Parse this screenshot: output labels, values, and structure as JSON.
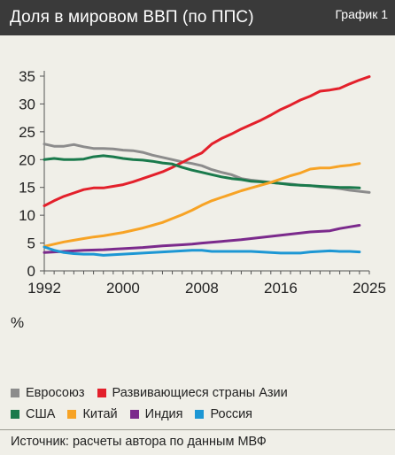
{
  "header": {
    "title": "Доля в мировом ВВП (по ППС)",
    "chart_label": "График 1"
  },
  "source": "Источник: расчеты автора по данным МВФ",
  "colors": {
    "header_bg": "#3a3a3a",
    "background": "#f0efe8"
  },
  "chart_data": {
    "type": "line",
    "title": "Доля в мировом ВВП (по ППС)",
    "xlabel": "",
    "ylabel": "%",
    "xlim": [
      1992,
      2025
    ],
    "ylim": [
      0,
      35
    ],
    "x_ticks": [
      1992,
      2000,
      2008,
      2016,
      2025
    ],
    "y_ticks": [
      0,
      5,
      10,
      15,
      20,
      25,
      30,
      35
    ],
    "grid": false,
    "legend_position": "bottom",
    "legend_rows": [
      [
        "Евросоюз",
        "Развивающиеся страны Азии"
      ],
      [
        "США",
        "Китай",
        "Индия",
        "Россия"
      ]
    ],
    "series": [
      {
        "name": "Евросоюз",
        "color": "#8c8c8c",
        "x": [
          1992,
          1993,
          1994,
          1995,
          1996,
          1997,
          1998,
          1999,
          2000,
          2001,
          2002,
          2003,
          2004,
          2005,
          2006,
          2007,
          2008,
          2009,
          2010,
          2011,
          2012,
          2013,
          2014,
          2015,
          2016,
          2017,
          2018,
          2019,
          2020,
          2021,
          2022,
          2023,
          2024,
          2025
        ],
        "y": [
          22.8,
          22.4,
          22.4,
          22.7,
          22.3,
          22.0,
          22.0,
          21.9,
          21.7,
          21.6,
          21.3,
          20.8,
          20.4,
          20.0,
          19.6,
          19.3,
          18.9,
          18.2,
          17.7,
          17.3,
          16.6,
          16.3,
          16.1,
          15.9,
          15.7,
          15.6,
          15.4,
          15.3,
          15.1,
          15.0,
          14.8,
          14.5,
          14.3,
          14.1
        ]
      },
      {
        "name": "Развивающиеся страны Азии",
        "color": "#e3202b",
        "x": [
          1992,
          1993,
          1994,
          1995,
          1996,
          1997,
          1998,
          1999,
          2000,
          2001,
          2002,
          2003,
          2004,
          2005,
          2006,
          2007,
          2008,
          2009,
          2010,
          2011,
          2012,
          2013,
          2014,
          2015,
          2016,
          2017,
          2018,
          2019,
          2020,
          2021,
          2022,
          2023,
          2024,
          2025
        ],
        "y": [
          11.7,
          12.6,
          13.4,
          14.0,
          14.6,
          14.9,
          14.9,
          15.2,
          15.5,
          16.0,
          16.6,
          17.2,
          17.8,
          18.6,
          19.5,
          20.4,
          21.2,
          22.8,
          23.8,
          24.6,
          25.5,
          26.3,
          27.1,
          28.0,
          29.0,
          29.8,
          30.7,
          31.4,
          32.3,
          32.5,
          32.8,
          33.6,
          34.3,
          34.9
        ]
      },
      {
        "name": "США",
        "color": "#1a7a4c",
        "x": [
          1992,
          1993,
          1994,
          1995,
          1996,
          1997,
          1998,
          1999,
          2000,
          2001,
          2002,
          2003,
          2004,
          2005,
          2006,
          2007,
          2008,
          2009,
          2010,
          2011,
          2012,
          2013,
          2014,
          2015,
          2016,
          2017,
          2018,
          2019,
          2020,
          2021,
          2022,
          2023,
          2024
        ],
        "y": [
          20.0,
          20.2,
          20.0,
          20.0,
          20.1,
          20.5,
          20.7,
          20.5,
          20.2,
          20.0,
          19.9,
          19.7,
          19.4,
          19.2,
          18.6,
          18.1,
          17.7,
          17.3,
          16.9,
          16.6,
          16.4,
          16.1,
          16.0,
          15.9,
          15.7,
          15.5,
          15.4,
          15.3,
          15.2,
          15.1,
          15.0,
          15.0,
          14.9
        ]
      },
      {
        "name": "Китай",
        "color": "#f7a325",
        "x": [
          1992,
          1993,
          1994,
          1995,
          1996,
          1997,
          1998,
          1999,
          2000,
          2001,
          2002,
          2003,
          2004,
          2005,
          2006,
          2007,
          2008,
          2009,
          2010,
          2011,
          2012,
          2013,
          2014,
          2015,
          2016,
          2017,
          2018,
          2019,
          2020,
          2021,
          2022,
          2023,
          2024
        ],
        "y": [
          4.4,
          4.8,
          5.2,
          5.5,
          5.8,
          6.1,
          6.3,
          6.6,
          6.9,
          7.3,
          7.7,
          8.2,
          8.7,
          9.4,
          10.1,
          10.9,
          11.8,
          12.6,
          13.2,
          13.8,
          14.4,
          14.9,
          15.4,
          15.9,
          16.5,
          17.1,
          17.6,
          18.3,
          18.5,
          18.5,
          18.8,
          19.0,
          19.3
        ]
      },
      {
        "name": "Индия",
        "color": "#7b2a8c",
        "x": [
          1992,
          1994,
          1996,
          1998,
          2000,
          2002,
          2004,
          2006,
          2007,
          2008,
          2010,
          2012,
          2014,
          2016,
          2018,
          2019,
          2020,
          2021,
          2022,
          2023,
          2024
        ],
        "y": [
          3.3,
          3.5,
          3.7,
          3.8,
          4.0,
          4.2,
          4.5,
          4.7,
          4.8,
          5.0,
          5.3,
          5.6,
          6.0,
          6.4,
          6.8,
          7.0,
          7.1,
          7.2,
          7.6,
          7.9,
          8.2
        ]
      },
      {
        "name": "Россия",
        "color": "#1d97d4",
        "x": [
          1992,
          1993,
          1994,
          1995,
          1996,
          1997,
          1998,
          1999,
          2000,
          2001,
          2002,
          2003,
          2004,
          2005,
          2006,
          2007,
          2008,
          2009,
          2010,
          2011,
          2012,
          2013,
          2014,
          2015,
          2016,
          2017,
          2018,
          2019,
          2020,
          2021,
          2022,
          2023,
          2024
        ],
        "y": [
          4.3,
          3.7,
          3.3,
          3.1,
          3.0,
          3.0,
          2.8,
          2.9,
          3.0,
          3.1,
          3.2,
          3.3,
          3.4,
          3.5,
          3.6,
          3.7,
          3.7,
          3.5,
          3.5,
          3.5,
          3.5,
          3.5,
          3.4,
          3.3,
          3.2,
          3.2,
          3.2,
          3.4,
          3.5,
          3.6,
          3.5,
          3.5,
          3.4
        ]
      }
    ]
  }
}
